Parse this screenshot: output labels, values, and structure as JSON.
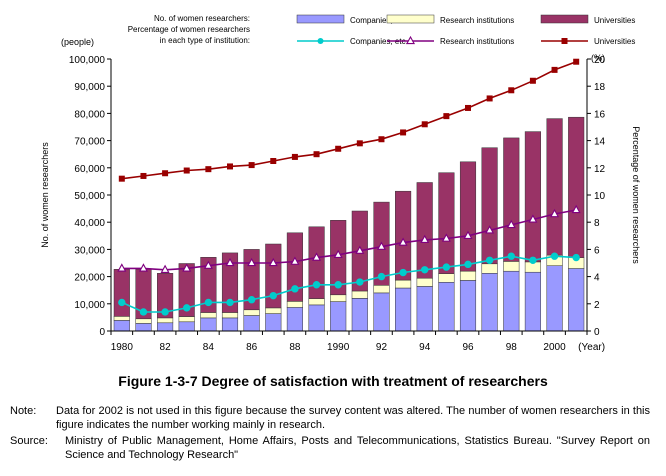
{
  "chart_data": {
    "type": "bar",
    "x": [
      "1980",
      "1981",
      "1982",
      "1983",
      "1984",
      "1985",
      "1986",
      "1987",
      "1988",
      "1989",
      "1990",
      "1991",
      "1992",
      "1993",
      "1994",
      "1995",
      "1996",
      "1997",
      "1998",
      "1999",
      "2000",
      "2001"
    ],
    "x_tick_labels": [
      "1980",
      "82",
      "84",
      "86",
      "88",
      "1990",
      "92",
      "94",
      "96",
      "98",
      "2000"
    ],
    "x_unit_label": "(Year)",
    "stacked_series": [
      {
        "name": "Companies, etc.",
        "color": "#9999ff",
        "values": [
          3900,
          2800,
          3000,
          3400,
          4800,
          4800,
          5700,
          6400,
          8700,
          9600,
          10800,
          12000,
          14000,
          15800,
          16400,
          17900,
          18600,
          21200,
          22000,
          21600,
          24000,
          23000
        ]
      },
      {
        "name": "Research institutions",
        "color": "#ffffcc",
        "values": [
          1500,
          1700,
          1800,
          1900,
          2000,
          2000,
          2100,
          2100,
          2200,
          2300,
          2500,
          2700,
          2800,
          2900,
          3000,
          3200,
          3400,
          3500,
          3600,
          3800,
          3900,
          4000
        ]
      },
      {
        "name": "Universities",
        "color": "#993366",
        "values": [
          17300,
          18200,
          16400,
          19500,
          20300,
          21900,
          22200,
          23500,
          25200,
          26400,
          27400,
          29400,
          30600,
          32700,
          35200,
          37100,
          40200,
          42700,
          45400,
          47900,
          50200,
          51600
        ]
      }
    ],
    "line_series": [
      {
        "name": "Companies, etc.",
        "color": "#00cccc",
        "marker": "circle",
        "values": [
          2.1,
          1.4,
          1.4,
          1.7,
          2.1,
          2.1,
          2.3,
          2.6,
          3.1,
          3.4,
          3.4,
          3.6,
          4.0,
          4.3,
          4.5,
          4.7,
          4.9,
          5.2,
          5.5,
          5.2,
          5.5,
          5.4
        ]
      },
      {
        "name": "Research institutions",
        "color": "#800080",
        "marker": "triangle",
        "values": [
          4.6,
          4.6,
          4.5,
          4.6,
          4.8,
          5.0,
          5.0,
          5.0,
          5.1,
          5.4,
          5.6,
          5.9,
          6.2,
          6.5,
          6.7,
          6.8,
          7.0,
          7.4,
          7.8,
          8.2,
          8.6,
          8.9
        ]
      },
      {
        "name": "Universities",
        "color": "#990000",
        "marker": "square",
        "values": [
          11.2,
          11.4,
          11.6,
          11.8,
          11.9,
          12.1,
          12.2,
          12.5,
          12.8,
          13.0,
          13.4,
          13.8,
          14.1,
          14.6,
          15.2,
          15.8,
          16.4,
          17.1,
          17.7,
          18.4,
          19.2,
          19.8
        ]
      }
    ],
    "y_left": {
      "label": "No. of women researchers",
      "unit": "(people)",
      "ylim": [
        0,
        100000
      ],
      "ticks": [
        "0",
        "10,000",
        "20,000",
        "30,000",
        "40,000",
        "50,000",
        "60,000",
        "70,000",
        "80,000",
        "90,000",
        "100,000"
      ]
    },
    "y_right": {
      "label": "Percentage of women researchers",
      "unit": "(%)",
      "ylim": [
        0,
        20
      ],
      "ticks": [
        "0",
        "2",
        "4",
        "6",
        "8",
        "10",
        "12",
        "14",
        "16",
        "18",
        "20"
      ]
    },
    "legend": {
      "row1_label": "No. of women researchers:",
      "row2_label_lines": [
        "Percentage of women researchers",
        "in each type of institution:"
      ],
      "position": "top"
    },
    "grid": false
  },
  "caption": "Figure 1-3-7  Degree of satisfaction with treatment of researchers",
  "note": {
    "label": "Note:",
    "text": "Data for 2002 is not used in this figure because the survey content was altered. The number of women researchers in this figure indicates the number working mainly in research."
  },
  "source": {
    "label": "Source:",
    "text": "Ministry of Public Management, Home Affairs, Posts and Telecommunications, Statistics Bureau. \"Survey Report on Science and Technology Research\""
  }
}
